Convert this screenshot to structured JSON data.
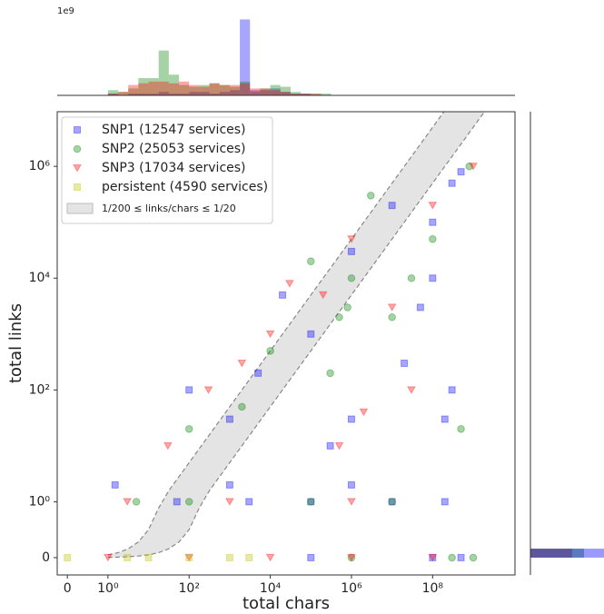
{
  "chart_data": {
    "type": "scatter",
    "xlabel": "total chars",
    "ylabel": "total links",
    "xscale": "symlog",
    "yscale": "symlog",
    "xlim": [
      -0.25,
      10700000000
    ],
    "ylim": [
      -0.31,
      9500000
    ],
    "xticks": [
      0,
      {
        "value": 1,
        "label": "10⁰"
      },
      {
        "value": 100,
        "label": "10²"
      },
      {
        "value": 10000,
        "label": "10⁴"
      },
      {
        "value": 1000000,
        "label": "10⁶"
      },
      {
        "value": 100000000,
        "label": "10⁸"
      }
    ],
    "yticks": [
      0,
      {
        "value": 1,
        "label": "10⁰"
      },
      {
        "value": 100,
        "label": "10²"
      },
      {
        "value": 10000,
        "label": "10⁴"
      },
      {
        "value": 1000000,
        "label": "10⁶"
      }
    ],
    "legend": "upper left",
    "band": {
      "label": "1/200 ≤ links/chars ≤ 1/20",
      "ratios": [
        0.005,
        0.05
      ],
      "color": "#bbbbbb"
    },
    "series": [
      {
        "name": "SNP1 (12547 services)",
        "color": "#0000ff",
        "marker": "square",
        "x": [
          100,
          1000,
          5000,
          20000,
          100000,
          1000000,
          10000000,
          100000000,
          300000000,
          500000000,
          20000000,
          1000000,
          300000,
          50,
          3000,
          100000,
          10000000,
          200000000,
          1.5,
          1000,
          1000000,
          100000,
          100000000,
          500000000,
          300000000,
          200000000,
          100000000,
          50000000
        ],
        "y": [
          100,
          30,
          200,
          5000,
          1000,
          30000,
          200000,
          100000,
          500000,
          800000,
          300,
          30,
          10,
          1,
          1,
          1,
          1,
          1,
          2,
          2,
          2,
          0,
          0,
          0,
          100,
          30,
          10000,
          3000
        ]
      },
      {
        "name": "SNP2 (25053 services)",
        "color": "#008000",
        "marker": "circle",
        "x": [
          100,
          2000,
          10000,
          100000,
          1000000,
          3000000,
          30000000,
          100000000,
          800000000,
          300000,
          10000000,
          500000000,
          500000,
          800000,
          5,
          100,
          100000,
          10000000,
          1000000,
          1000000000,
          300000000
        ],
        "y": [
          20,
          50,
          500,
          20000,
          10000,
          300000,
          10000,
          50000,
          1000000,
          200,
          2000,
          20,
          2000,
          3000,
          1,
          1,
          1,
          1,
          0,
          0,
          0
        ]
      },
      {
        "name": "SNP3 (17034 services)",
        "color": "#ff0000",
        "marker": "triangle",
        "x": [
          30,
          300,
          2000,
          10000,
          30000,
          200000,
          1000000,
          10000000,
          100000000,
          1000000000,
          30000000,
          500000,
          2000000,
          3,
          1000,
          1000000,
          1,
          100,
          10000,
          1000000,
          100000000
        ],
        "y": [
          10,
          100,
          300,
          1000,
          8000,
          5000,
          50000,
          3000,
          200000,
          1000000,
          100,
          10,
          40,
          1,
          1,
          1,
          0,
          0,
          0,
          0,
          0
        ]
      },
      {
        "name": "persistent (4590 services)",
        "color": "#bfbf00",
        "marker": "square",
        "x": [
          0,
          3,
          10,
          100,
          1000,
          3000
        ],
        "y": [
          0,
          0,
          0,
          0,
          0,
          0
        ]
      }
    ],
    "top_histogram": {
      "offset_label": "1e9",
      "ylim": [
        0,
        2.5
      ],
      "bins": [
        1,
        1.78,
        3.16,
        5.62,
        10,
        17.8,
        31.6,
        56.2,
        100,
        178,
        316,
        562,
        1000,
        1780,
        3160,
        5620,
        10000,
        17800,
        31600,
        56200,
        100000,
        178000,
        316000
      ],
      "series": [
        {
          "color": "#0000ff",
          "values": [
            0.05,
            0,
            0.05,
            0.05,
            0.05,
            0.1,
            0.05,
            0.05,
            0.1,
            0.1,
            0.05,
            0.1,
            0.15,
            2.2,
            0.15,
            0.15,
            0.2,
            0.1,
            0.05,
            0.05,
            0,
            0
          ]
        },
        {
          "color": "#008000",
          "values": [
            0.15,
            0.1,
            0.2,
            0.5,
            0.5,
            1.3,
            0.6,
            0.3,
            0.25,
            0.3,
            0.35,
            0.3,
            0.25,
            0.4,
            0.1,
            0.2,
            0.3,
            0.25,
            0.1,
            0.05,
            0.05,
            0.05
          ]
        },
        {
          "color": "#ff0000",
          "values": [
            0.05,
            0.1,
            0.3,
            0.35,
            0.4,
            0.4,
            0.35,
            0.4,
            0.3,
            0.25,
            0.35,
            0.3,
            0.3,
            0.35,
            0.2,
            0.2,
            0.15,
            0.1,
            0.05,
            0.05,
            0.05,
            0
          ]
        }
      ]
    },
    "right_histogram": {
      "xlim": [
        0,
        4
      ],
      "bins": [
        0,
        0.16
      ],
      "series": [
        {
          "color": "#ff0000",
          "values": [
            2.3
          ]
        },
        {
          "color": "#008000",
          "values": [
            2.95
          ]
        },
        {
          "color": "#0000ff",
          "values": [
            4.2
          ]
        }
      ]
    }
  }
}
